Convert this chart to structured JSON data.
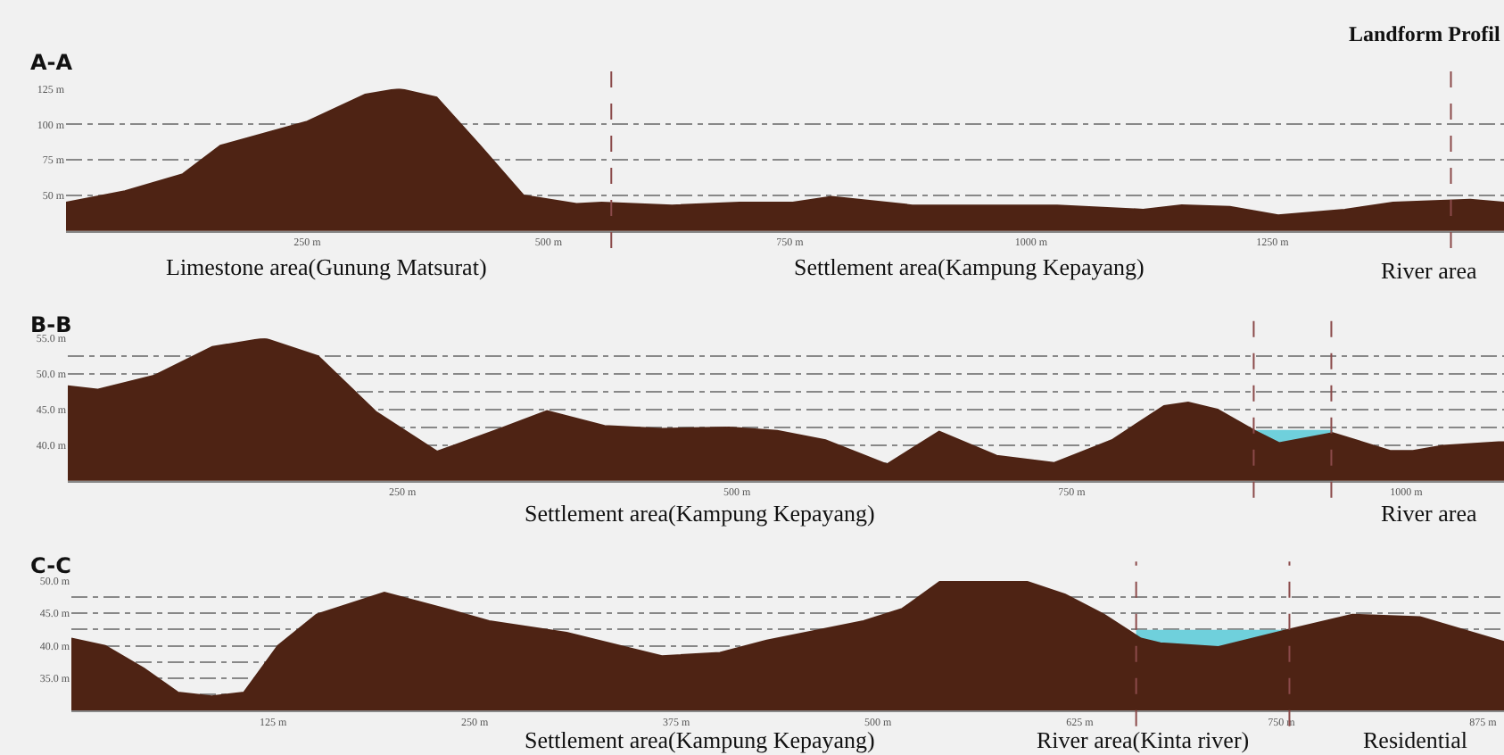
{
  "chart_data": [
    {
      "type": "area",
      "title": "A-A",
      "annotations": [
        "Limestone area(Gunung Matsurat)",
        "Settlement area(Kampung Kepayang)",
        "River area",
        "Landform Profil"
      ],
      "series": [
        {
          "color": "#4e2314",
          "x": [
            0,
            61,
            121,
            160,
            250,
            310,
            345,
            384,
            429,
            474,
            529,
            555,
            628,
            698,
            753,
            793,
            877,
            946,
            1027,
            1116,
            1156,
            1206,
            1256,
            1325,
            1375,
            1455,
            1490
          ],
          "values": [
            45,
            53,
            65,
            85,
            102,
            121,
            125,
            119,
            85,
            50,
            44,
            45,
            43,
            45,
            45,
            49,
            43,
            43,
            43,
            40,
            43,
            42,
            36,
            40,
            45,
            47,
            45
          ]
        }
      ],
      "xlim": [
        0,
        1490
      ],
      "ylim": [
        25,
        125
      ],
      "xticks": [
        {
          "value": 250,
          "label": "250 m"
        },
        {
          "value": 500,
          "label": "500 m"
        },
        {
          "value": 750,
          "label": "750 m"
        },
        {
          "value": 1000,
          "label": "1000 m"
        },
        {
          "value": 1250,
          "label": "1250 m"
        }
      ],
      "yticks": [
        {
          "value": 50,
          "label": "50 m"
        },
        {
          "value": 75,
          "label": "75 m"
        },
        {
          "value": 100,
          "label": "100 m"
        },
        {
          "value": 125,
          "label": "125 m"
        }
      ],
      "grid": "y",
      "ref_lines": [
        {
          "axis": "x",
          "value": 565,
          "color": "#8b4a4a",
          "line_style": "dashed"
        },
        {
          "axis": "x",
          "value": 1435,
          "color": "#8b4a4a",
          "line_style": "dashed"
        }
      ]
    },
    {
      "type": "area",
      "title": "B-B",
      "annotations": [
        "Settlement area(Kampung Kepayang)",
        "River area"
      ],
      "series": [
        {
          "color": "#6fd0dc",
          "x": [
            887,
            945
          ],
          "values": [
            42,
            42
          ]
        },
        {
          "color": "#4e2314",
          "x": [
            0,
            22,
            65,
            108,
            147,
            187,
            230,
            276,
            323,
            358,
            401,
            444,
            494,
            530,
            566,
            612,
            651,
            694,
            737,
            780,
            819,
            837,
            859,
            887,
            905,
            945,
            988,
            1005,
            1027,
            1069,
            1073
          ],
          "values": [
            48.3,
            47.8,
            49.8,
            53.8,
            55.0,
            52.5,
            44.7,
            39.1,
            42.3,
            44.8,
            42.7,
            42.3,
            42.5,
            42.0,
            40.7,
            37.3,
            41.9,
            38.5,
            37.5,
            40.7,
            45.5,
            46.0,
            45.0,
            42.0,
            40.3,
            41.7,
            39.2,
            39.2,
            39.9,
            40.4,
            40.4
          ]
        }
      ],
      "xlim": [
        0,
        1073
      ],
      "ylim": [
        35,
        55
      ],
      "xticks": [
        {
          "value": 250,
          "label": "250 m"
        },
        {
          "value": 500,
          "label": "500 m"
        },
        {
          "value": 750,
          "label": "750 m"
        },
        {
          "value": 1000,
          "label": "1000 m"
        }
      ],
      "yticks": [
        {
          "value": 37.5,
          "label": null
        },
        {
          "value": 40,
          "label": "40.0 m"
        },
        {
          "value": 42.5,
          "label": null
        },
        {
          "value": 45,
          "label": "45.0 m"
        },
        {
          "value": 47.5,
          "label": null
        },
        {
          "value": 50,
          "label": "50.0 m"
        },
        {
          "value": 52.5,
          "label": null
        },
        {
          "value": 55,
          "label": "55.0 m"
        }
      ],
      "grid": "y",
      "ref_lines": [
        {
          "axis": "x",
          "value": 886,
          "color": "#8b4a4a",
          "line_style": "dashed"
        },
        {
          "axis": "x",
          "value": 944,
          "color": "#8b4a4a",
          "line_style": "dashed"
        }
      ]
    },
    {
      "type": "area",
      "title": "C-C",
      "annotations": [
        "Settlement area(Kampung Kepayang)",
        "River area(Kinta river)",
        "Residential"
      ],
      "series": [
        {
          "color": "#6fd0dc",
          "x": [
            660,
            753
          ],
          "values": [
            42.3,
            42.3
          ]
        },
        {
          "color": "#4e2314",
          "x": [
            0,
            21,
            45,
            66,
            87,
            107,
            128,
            152,
            194,
            235,
            259,
            307,
            366,
            402,
            431,
            491,
            515,
            539,
            592,
            616,
            640,
            663,
            675,
            711,
            753,
            794,
            836,
            888
          ],
          "values": [
            41.1,
            40.0,
            36.5,
            32.8,
            32.2,
            32.8,
            40.0,
            44.8,
            48.2,
            45.5,
            43.8,
            42.0,
            38.4,
            38.9,
            40.8,
            43.8,
            45.7,
            50.0,
            49.9,
            47.9,
            44.8,
            41.1,
            40.4,
            39.8,
            42.4,
            44.8,
            44.4,
            40.6
          ]
        }
      ],
      "xlim": [
        0,
        888
      ],
      "ylim": [
        30,
        50
      ],
      "xticks": [
        {
          "value": 125,
          "label": "125 m"
        },
        {
          "value": 250,
          "label": "250 m"
        },
        {
          "value": 375,
          "label": "375 m"
        },
        {
          "value": 500,
          "label": "500 m"
        },
        {
          "value": 625,
          "label": "625 m"
        },
        {
          "value": 750,
          "label": "750 m"
        },
        {
          "value": 875,
          "label": "875 m"
        }
      ],
      "yticks": [
        {
          "value": 32.5,
          "label": null
        },
        {
          "value": 35,
          "label": "35.0 m"
        },
        {
          "value": 37.5,
          "label": null
        },
        {
          "value": 40,
          "label": "40.0 m"
        },
        {
          "value": 42.5,
          "label": null
        },
        {
          "value": 45,
          "label": "45.0 m"
        },
        {
          "value": 47.5,
          "label": null
        },
        {
          "value": 50,
          "label": "50.0 m"
        }
      ],
      "grid": "y",
      "ref_lines": [
        {
          "axis": "x",
          "value": 660,
          "color": "#8b4a4a",
          "line_style": "dashed"
        },
        {
          "axis": "x",
          "value": 755,
          "color": "#8b4a4a",
          "line_style": "dashed"
        }
      ]
    }
  ]
}
